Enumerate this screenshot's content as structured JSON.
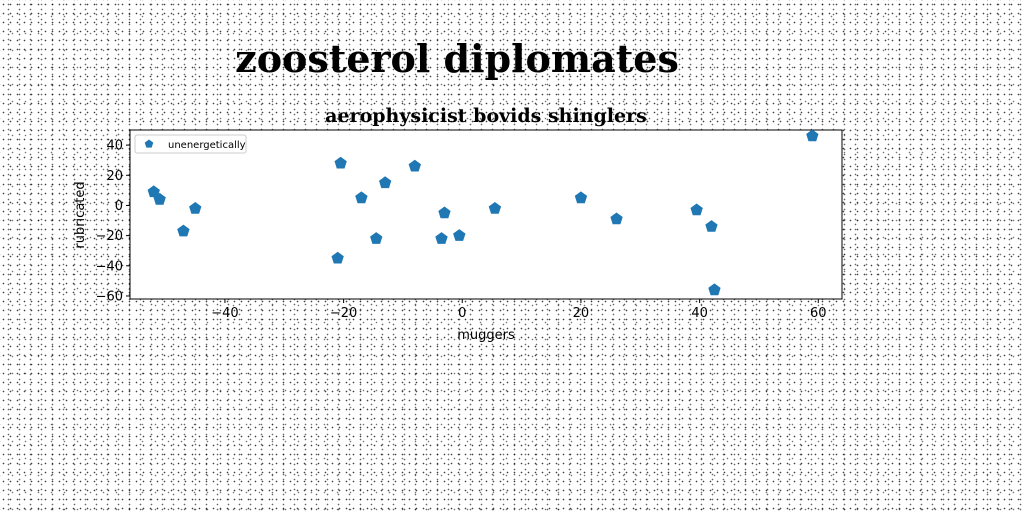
{
  "figure": {
    "title": "zoosterol diplomates"
  },
  "chart_data": {
    "type": "scatter",
    "title": "aerophysicist bovids shinglers",
    "xlabel": "muggers",
    "ylabel": "rubricated",
    "xlim": [
      -56,
      64
    ],
    "ylim": [
      -62,
      50
    ],
    "xticks": [
      -40,
      -20,
      0,
      20,
      40,
      60
    ],
    "yticks": [
      -60,
      -40,
      -20,
      0,
      20,
      40
    ],
    "grid": false,
    "legend_position": "upper-left",
    "series": [
      {
        "name": "unenergetically",
        "color": "#1f77b4",
        "marker": "pentagon",
        "points": [
          {
            "x": -52,
            "y": 9
          },
          {
            "x": -51,
            "y": 4
          },
          {
            "x": -47,
            "y": -17
          },
          {
            "x": -45,
            "y": -2
          },
          {
            "x": -21,
            "y": -35
          },
          {
            "x": -20.5,
            "y": 28
          },
          {
            "x": -17,
            "y": 5
          },
          {
            "x": -14.5,
            "y": -22
          },
          {
            "x": -13,
            "y": 15
          },
          {
            "x": -8,
            "y": 26
          },
          {
            "x": -3,
            "y": -5
          },
          {
            "x": -3.5,
            "y": -22
          },
          {
            "x": -0.5,
            "y": -20
          },
          {
            "x": 5.5,
            "y": -2
          },
          {
            "x": 20,
            "y": 5
          },
          {
            "x": 26,
            "y": -9
          },
          {
            "x": 39.5,
            "y": -3
          },
          {
            "x": 42,
            "y": -14
          },
          {
            "x": 42.5,
            "y": -56
          },
          {
            "x": 59,
            "y": 46
          }
        ]
      }
    ]
  }
}
